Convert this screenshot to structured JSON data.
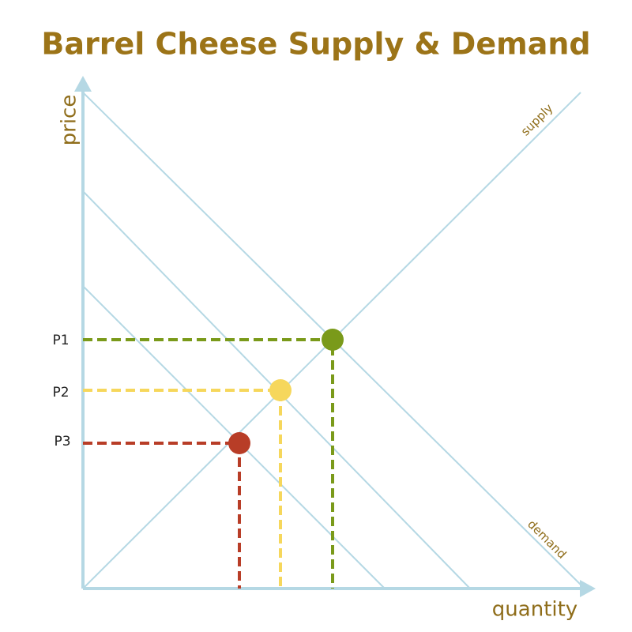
{
  "title": "Barrel Cheese Supply & Demand",
  "axes": {
    "y_label": "price",
    "x_label": "quantity"
  },
  "curves": {
    "supply": "supply",
    "demand": "demand"
  },
  "points": [
    {
      "label": "P1"
    },
    {
      "label": "P2"
    },
    {
      "label": "P3"
    }
  ]
}
